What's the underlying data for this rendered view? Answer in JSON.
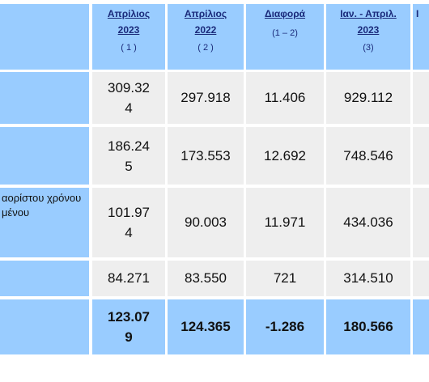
{
  "headers": [
    {
      "title_line1": "Απρίλιος",
      "title_line2": "2023",
      "sub": "( 1 )"
    },
    {
      "title_line1": "Απρίλιος",
      "title_line2": "2022",
      "sub": "( 2 )"
    },
    {
      "title_line1": "Διαφορά",
      "title_line2": "",
      "sub": "(1 – 2)"
    },
    {
      "title_line1": "Ιαν. - Απριλ.",
      "title_line2": "2023",
      "sub": "(3)"
    },
    {
      "title_line1": "Ι",
      "title_line2": "",
      "sub": ""
    }
  ],
  "row_labels": {
    "row3_line1": "αορίστου χρόνου",
    "row3_line2": "μένου"
  },
  "rows": [
    {
      "c1": "309.324",
      "c2": "297.918",
      "c3": "11.406",
      "c4": "929.112"
    },
    {
      "c1": "186.245",
      "c2": "173.553",
      "c3": "12.692",
      "c4": "748.546"
    },
    {
      "c1": "101.974",
      "c2": "90.003",
      "c3": "11.971",
      "c4": "434.036"
    },
    {
      "c1": "84.271",
      "c2": "83.550",
      "c3": "721",
      "c4": "314.510"
    },
    {
      "c1": "123.079",
      "c2": "124.365",
      "c3": "-1.286",
      "c4": "180.566"
    }
  ]
}
